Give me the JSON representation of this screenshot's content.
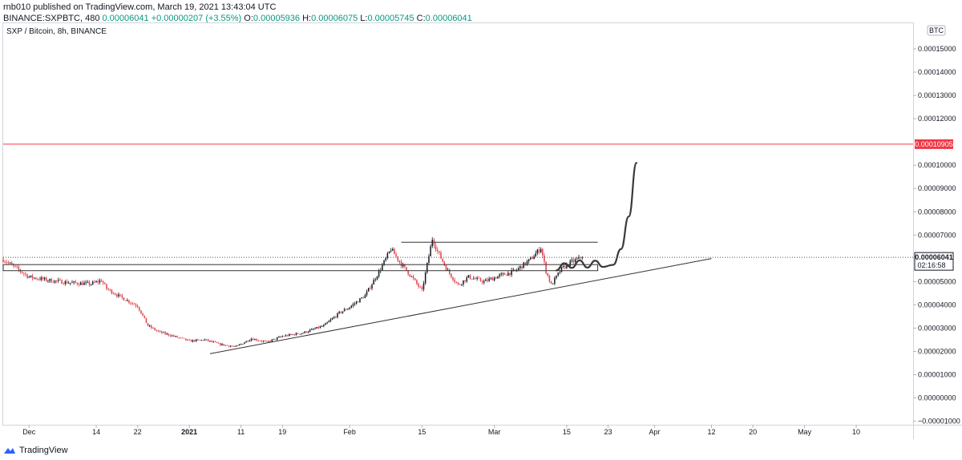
{
  "header": {
    "publisher": "rnb010 published on TradingView.com, March 19, 2021 13:43:04 UTC",
    "symbol": "BINANCE:SXPBTC, 480",
    "last": "0.00006041",
    "change": "+0.00000207 (+3.55%)",
    "o_label": "O:",
    "o_value": "0.00005936",
    "h_label": "H:",
    "h_value": "0.00006075",
    "l_label": "L:",
    "l_value": "0.00005745",
    "c_label": "C:",
    "c_value": "0.00006041"
  },
  "legend": {
    "title": "SXP / Bitcoin, 8h, BINANCE"
  },
  "footer": {
    "brand": "TradingView"
  },
  "colors": {
    "up": "#089981",
    "down": "#f23645",
    "bull_candle": "#131722",
    "bear_candle": "#e0414b",
    "resistance": "#f23645",
    "drawing": "#333333"
  },
  "chart_data": {
    "type": "candlestick",
    "currency_badge": "BTC",
    "y_ticks": [
      "0.00015000",
      "0.00014000",
      "0.00013000",
      "0.00012000",
      "0.00010000",
      "0.00009000",
      "0.00008000",
      "0.00007000",
      "0.00005000",
      "0.00004000",
      "0.00003000",
      "0.00002000",
      "0.00001000",
      "0.00000000",
      "−0.00001000"
    ],
    "y_tick_values": [
      0.00015,
      0.00014,
      0.00013,
      0.00012,
      0.0001,
      9e-05,
      8e-05,
      7e-05,
      5e-05,
      4e-05,
      3e-05,
      2e-05,
      1e-05,
      0,
      -1e-05
    ],
    "ylim": [
      -1.15e-05,
      0.000161
    ],
    "x_ticks": [
      "Dec",
      "14",
      "22",
      "2021",
      "11",
      "19",
      "Feb",
      "15",
      "Mar",
      "15",
      "23",
      "Apr",
      "12",
      "20",
      "May",
      "10"
    ],
    "x_tick_days": [
      -64,
      -51,
      -43,
      -33,
      -23,
      -15,
      -2,
      12,
      26,
      40,
      48,
      57,
      68,
      76,
      86,
      96
    ],
    "x_domain_days": [
      -69,
      107
    ],
    "price_labels": [
      {
        "text": "0.00010905",
        "value": 0.00010905,
        "color": "#f23645",
        "style": "resistance"
      },
      {
        "text": "0.00006041",
        "value": 6.041e-05,
        "color": "#131722",
        "style": "last",
        "countdown": "02:16:58"
      }
    ],
    "resistance_level": 0.00010905,
    "last_price": 6.041e-05,
    "path": [
      [
        -69,
        5.95e-05
      ],
      [
        -67,
        5.65e-05
      ],
      [
        -64,
        5.2e-05
      ],
      [
        -60,
        5.05e-05
      ],
      [
        -56,
        4.95e-05
      ],
      [
        -52,
        4.9e-05
      ],
      [
        -50,
        5.05e-05
      ],
      [
        -49,
        4.7e-05
      ],
      [
        -46,
        4.3e-05
      ],
      [
        -43,
        3.95e-05
      ],
      [
        -41,
        3.1e-05
      ],
      [
        -39,
        2.85e-05
      ],
      [
        -36,
        2.65e-05
      ],
      [
        -33,
        2.45e-05
      ],
      [
        -30,
        2.5e-05
      ],
      [
        -27,
        2.3e-05
      ],
      [
        -24,
        2.2e-05
      ],
      [
        -21,
        2.55e-05
      ],
      [
        -18,
        2.4e-05
      ],
      [
        -15,
        2.65e-05
      ],
      [
        -11,
        2.8e-05
      ],
      [
        -7,
        3.1e-05
      ],
      [
        -4,
        3.65e-05
      ],
      [
        -2,
        3.9e-05
      ],
      [
        1,
        4.4e-05
      ],
      [
        4,
        5.55e-05
      ],
      [
        6,
        6.4e-05
      ],
      [
        8,
        5.75e-05
      ],
      [
        10,
        5.2e-05
      ],
      [
        12,
        4.6e-05
      ],
      [
        14,
        6.85e-05
      ],
      [
        15,
        6.3e-05
      ],
      [
        17,
        5.45e-05
      ],
      [
        19,
        4.85e-05
      ],
      [
        21,
        5.2e-05
      ],
      [
        24,
        5e-05
      ],
      [
        27,
        5.25e-05
      ],
      [
        30,
        5.45e-05
      ],
      [
        33,
        5.95e-05
      ],
      [
        35,
        6.45e-05
      ],
      [
        36,
        5.45e-05
      ],
      [
        37,
        4.85e-05
      ],
      [
        39,
        5.55e-05
      ],
      [
        41,
        5.85e-05
      ],
      [
        43,
        6.04e-05
      ]
    ],
    "drawings": {
      "range_box": {
        "x1": -69,
        "x2": 46,
        "y1": 5.47e-05,
        "y2": 5.73e-05
      },
      "top_line": {
        "x1": 8,
        "x2": 46,
        "y": 6.69e-05
      },
      "trendline": {
        "x1": -29,
        "y1": 1.9e-05,
        "x2": 68,
        "y2": 5.99e-05
      },
      "projection": [
        [
          38,
          5.48e-05
        ],
        [
          39.5,
          5.79e-05
        ],
        [
          41,
          5.59e-05
        ],
        [
          42.5,
          5.91e-05
        ],
        [
          44,
          5.6e-05
        ],
        [
          45.5,
          5.9e-05
        ],
        [
          47,
          5.63e-05
        ],
        [
          49,
          5.72e-05
        ],
        [
          50.5,
          6.4e-05
        ],
        [
          52,
          7.8e-05
        ],
        [
          53.5,
          0.000101
        ]
      ]
    }
  }
}
